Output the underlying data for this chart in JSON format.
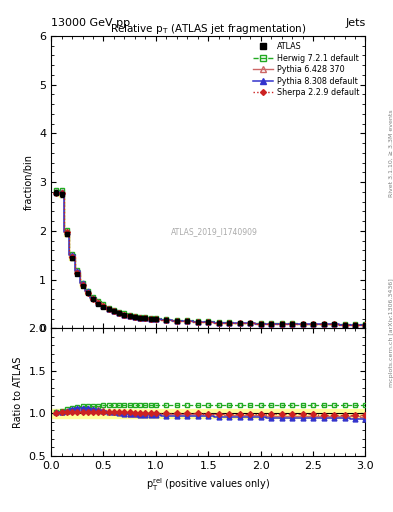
{
  "title": "Relative $p_{T}$ (ATLAS jet fragmentation)",
  "header_left": "13000 GeV pp",
  "header_right": "Jets",
  "ylabel_main": "fraction/bin",
  "ylabel_ratio": "Ratio to ATLAS",
  "watermark": "ATLAS_2019_I1740909",
  "rivet_text": "Rivet 3.1.10, ≥ 3.3M events",
  "arxiv_text": "mcplots.cern.ch [arXiv:1306.3436]",
  "ylim_main": [
    0,
    6
  ],
  "ylim_ratio": [
    0.5,
    2.0
  ],
  "xlim": [
    0,
    3
  ],
  "xticks": [
    0,
    0.5,
    1.0,
    1.5,
    2.0,
    2.5,
    3.0
  ],
  "yticks_main": [
    0,
    1,
    2,
    3,
    4,
    5,
    6
  ],
  "yticks_ratio": [
    0.5,
    1.0,
    1.5,
    2.0
  ],
  "x_data": [
    0.05,
    0.1,
    0.15,
    0.2,
    0.25,
    0.3,
    0.35,
    0.4,
    0.45,
    0.5,
    0.55,
    0.6,
    0.65,
    0.7,
    0.75,
    0.8,
    0.85,
    0.9,
    0.95,
    1.0,
    1.1,
    1.2,
    1.3,
    1.4,
    1.5,
    1.6,
    1.7,
    1.8,
    1.9,
    2.0,
    2.1,
    2.2,
    2.3,
    2.4,
    2.5,
    2.6,
    2.7,
    2.8,
    2.9,
    3.0
  ],
  "atlas_y": [
    2.78,
    2.75,
    1.93,
    1.44,
    1.12,
    0.87,
    0.72,
    0.6,
    0.51,
    0.45,
    0.39,
    0.35,
    0.31,
    0.28,
    0.26,
    0.24,
    0.22,
    0.21,
    0.2,
    0.19,
    0.17,
    0.16,
    0.15,
    0.14,
    0.13,
    0.12,
    0.12,
    0.11,
    0.11,
    0.1,
    0.1,
    0.1,
    0.1,
    0.09,
    0.09,
    0.09,
    0.09,
    0.08,
    0.08,
    0.08
  ],
  "atlas_err": [
    0.05,
    0.05,
    0.04,
    0.03,
    0.02,
    0.02,
    0.015,
    0.012,
    0.01,
    0.009,
    0.008,
    0.007,
    0.006,
    0.005,
    0.005,
    0.004,
    0.004,
    0.004,
    0.003,
    0.003,
    0.003,
    0.002,
    0.002,
    0.002,
    0.002,
    0.002,
    0.002,
    0.002,
    0.002,
    0.002,
    0.002,
    0.002,
    0.002,
    0.002,
    0.002,
    0.001,
    0.001,
    0.001,
    0.001,
    0.001
  ],
  "herwig_ratio": [
    1.02,
    1.03,
    1.05,
    1.06,
    1.07,
    1.08,
    1.08,
    1.09,
    1.09,
    1.1,
    1.1,
    1.1,
    1.1,
    1.1,
    1.1,
    1.1,
    1.1,
    1.1,
    1.1,
    1.1,
    1.1,
    1.1,
    1.1,
    1.1,
    1.1,
    1.1,
    1.1,
    1.1,
    1.1,
    1.1,
    1.1,
    1.1,
    1.1,
    1.1,
    1.1,
    1.1,
    1.1,
    1.1,
    1.1,
    1.1
  ],
  "pythia6_ratio": [
    1.01,
    1.02,
    1.03,
    1.04,
    1.05,
    1.05,
    1.05,
    1.05,
    1.05,
    1.04,
    1.03,
    1.02,
    1.01,
    1.0,
    0.99,
    0.99,
    0.99,
    0.99,
    0.99,
    0.99,
    0.99,
    0.99,
    0.99,
    0.99,
    0.99,
    0.99,
    0.98,
    0.98,
    0.98,
    0.98,
    0.97,
    0.97,
    0.97,
    0.97,
    0.97,
    0.97,
    0.97,
    0.97,
    0.97,
    0.96
  ],
  "pythia8_ratio": [
    1.01,
    1.02,
    1.03,
    1.05,
    1.06,
    1.06,
    1.06,
    1.05,
    1.04,
    1.03,
    1.02,
    1.01,
    1.0,
    0.99,
    0.99,
    0.99,
    0.98,
    0.98,
    0.98,
    0.98,
    0.97,
    0.97,
    0.97,
    0.97,
    0.97,
    0.96,
    0.96,
    0.96,
    0.96,
    0.96,
    0.95,
    0.95,
    0.95,
    0.95,
    0.95,
    0.94,
    0.94,
    0.94,
    0.93,
    0.93
  ],
  "sherpa_ratio": [
    1.0,
    1.01,
    1.02,
    1.02,
    1.02,
    1.02,
    1.02,
    1.01,
    1.01,
    1.01,
    1.01,
    1.01,
    1.01,
    1.01,
    1.01,
    1.0,
    1.0,
    1.0,
    1.0,
    1.0,
    1.0,
    1.0,
    1.0,
    1.0,
    0.99,
    0.99,
    0.99,
    0.99,
    0.99,
    0.99,
    0.99,
    0.99,
    0.99,
    0.99,
    0.99,
    0.98,
    0.98,
    0.98,
    0.98,
    0.98
  ],
  "atlas_band_err": 0.05,
  "color_atlas": "black",
  "color_herwig": "#22aa22",
  "color_pythia6": "#cc6666",
  "color_pythia8": "#3333cc",
  "color_sherpa": "#cc2222"
}
